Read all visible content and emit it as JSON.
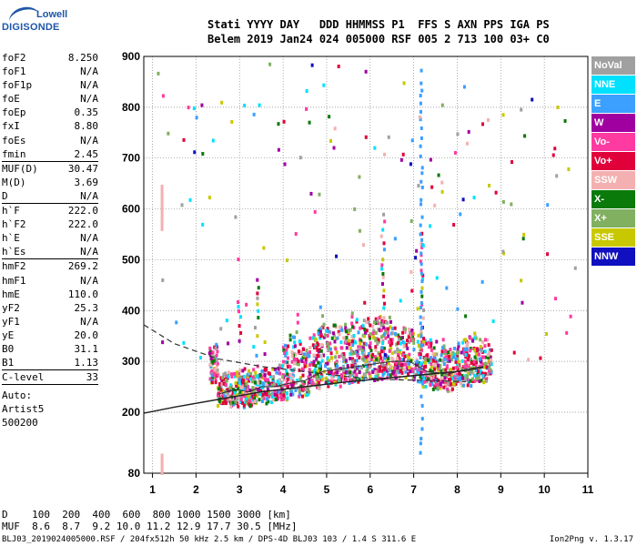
{
  "logo": {
    "line1": "Lowell",
    "line2": "DIGISONDE"
  },
  "header": {
    "line1": "Stati YYYY DAY   DDD HHMMSS P1  FFS S AXN PPS IGA PS",
    "line2": "Belem 2019 Jan24 024 005000 RSF 005 2 713 100 03+ C0"
  },
  "params_groups": [
    [
      [
        "foF2",
        "8.250"
      ],
      [
        "foF1",
        "N/A"
      ],
      [
        "foF1p",
        "N/A"
      ],
      [
        "foE",
        "N/A"
      ],
      [
        "foEp",
        "0.35"
      ],
      [
        "fxI",
        "8.80"
      ],
      [
        "foEs",
        "N/A"
      ],
      [
        "fmin",
        "2.45"
      ]
    ],
    [
      [
        "MUF(D)",
        "30.47"
      ],
      [
        "M(D)",
        "3.69"
      ],
      [
        "D",
        "N/A"
      ]
    ],
    [
      [
        "h`F",
        "222.0"
      ],
      [
        "h`F2",
        "222.0"
      ],
      [
        "h`E",
        "N/A"
      ],
      [
        "h`Es",
        "N/A"
      ]
    ],
    [
      [
        "hmF2",
        "269.2"
      ],
      [
        "hmF1",
        "N/A"
      ],
      [
        "hmE",
        "110.0"
      ],
      [
        "yF2",
        "25.3"
      ],
      [
        "yF1",
        "N/A"
      ],
      [
        "yE",
        "20.0"
      ],
      [
        "B0",
        "31.1"
      ],
      [
        "B1",
        "1.13"
      ]
    ],
    [
      [
        "C-level",
        "33"
      ]
    ]
  ],
  "auto": {
    "line1": "Auto:",
    "line2": "Artist5",
    "line3": "500200"
  },
  "legend": [
    {
      "label": "NoVal",
      "color": "#a0a0a0"
    },
    {
      "label": "NNE",
      "color": "#00e0ff"
    },
    {
      "label": "E",
      "color": "#3ba0ff"
    },
    {
      "label": "W",
      "color": "#a000a0"
    },
    {
      "label": "Vo-",
      "color": "#ff3aa0"
    },
    {
      "label": "Vo+",
      "color": "#e0003a"
    },
    {
      "label": "SSW",
      "color": "#f4b0b0"
    },
    {
      "label": "X-",
      "color": "#0a7a0a"
    },
    {
      "label": "X+",
      "color": "#80b060"
    },
    {
      "label": "SSE",
      "color": "#c8c800"
    },
    {
      "label": "NNW",
      "color": "#1010c0"
    }
  ],
  "conversion": {
    "d_line": "D    100  200  400  600  800 1000 1500 3000 [km]",
    "muf_line": "MUF  8.6  8.7  9.2 10.0 11.2 12.9 17.7 30.5 [MHz]"
  },
  "footer": {
    "left": "BLJ03_2019024005000.RSF / 204fx512h 50 kHz 2.5 km / DPS-4D BLJ03 103 / 1.4 S 311.6 E",
    "right": "Ion2Png v. 1.3.17"
  },
  "chart_data": {
    "type": "scatter",
    "xlabel": "",
    "ylabel": "",
    "xlim": [
      0.8,
      11.0
    ],
    "ylim": [
      80,
      900
    ],
    "xticks": [
      1,
      2,
      3,
      4,
      5,
      6,
      7,
      8,
      9,
      10,
      11
    ],
    "yticks": [
      80,
      200,
      300,
      400,
      500,
      600,
      700,
      800,
      900
    ],
    "grid": true,
    "legend_position": "right",
    "profile_solid": {
      "x": [
        0.8,
        1.5,
        2.5,
        3.5,
        4.5,
        5.5,
        6.5,
        7.5,
        8.2,
        8.6
      ],
      "y": [
        198,
        210,
        225,
        240,
        250,
        260,
        268,
        276,
        282,
        288
      ]
    },
    "profile_dashed": {
      "x": [
        0.8,
        1.5,
        2.5,
        3.5,
        4.5,
        5.5,
        6.5,
        7.5,
        8.2
      ],
      "y": [
        372,
        335,
        305,
        290,
        280,
        270,
        264,
        262,
        260
      ]
    },
    "trace": {
      "x": [
        2.5,
        2.9,
        3.2,
        3.5,
        3.8,
        4.2,
        4.5,
        4.9,
        5.3,
        5.7,
        6.1,
        6.5,
        6.9,
        7.3,
        7.8,
        8.2,
        8.6
      ],
      "y": [
        235,
        245,
        240,
        250,
        250,
        258,
        262,
        280,
        285,
        290,
        295,
        300,
        300,
        280,
        275,
        285,
        290
      ]
    }
  }
}
